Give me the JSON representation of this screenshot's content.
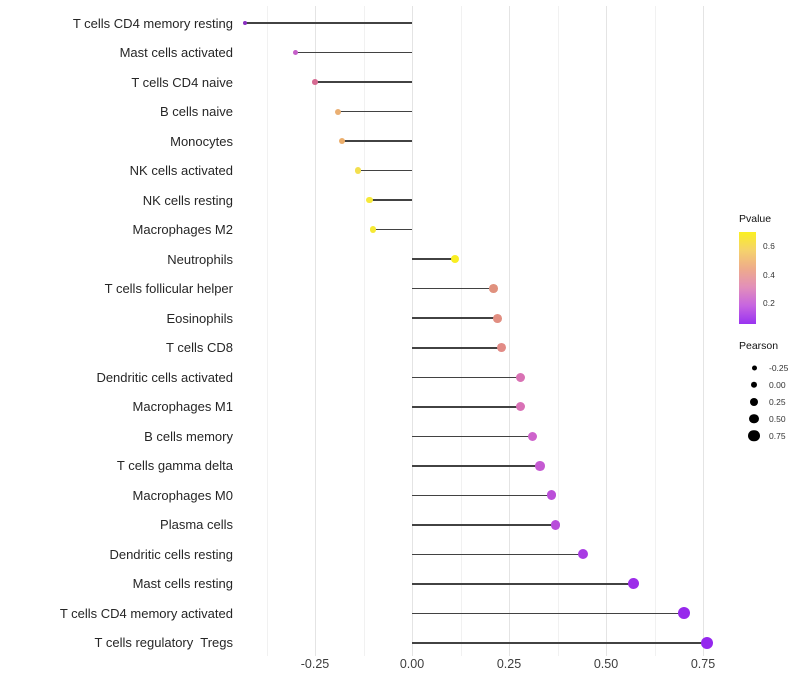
{
  "chart_data": {
    "type": "lollipop",
    "title": "",
    "xlabel": "",
    "ylabel": "",
    "xlim": [
      -0.45,
      0.8
    ],
    "baseline": 0,
    "grid_minor_step": 0.125,
    "grid_values": [
      -0.375,
      -0.25,
      -0.125,
      0,
      0.125,
      0.25,
      0.375,
      0.5,
      0.625,
      0.75
    ],
    "x_ticks": [
      {
        "value": -0.25,
        "label": "-0.25"
      },
      {
        "value": 0.0,
        "label": "0.00"
      },
      {
        "value": 0.25,
        "label": "0.25"
      },
      {
        "value": 0.5,
        "label": "0.50"
      },
      {
        "value": 0.75,
        "label": "0.75"
      }
    ],
    "categories": [
      "T cells CD4 memory resting",
      "Mast cells activated",
      "T cells CD4 naive",
      "B cells naive",
      "Monocytes",
      "NK cells activated",
      "NK cells resting",
      "Macrophages M2",
      "Neutrophils",
      "T cells follicular helper",
      "Eosinophils",
      "T cells CD8",
      "Dendritic cells activated",
      "Macrophages M1",
      "B cells memory",
      "T cells gamma delta",
      "Macrophages M0",
      "Plasma cells",
      "Dendritic cells resting",
      "Mast cells resting",
      "T cells CD4 memory activated",
      "T cells regulatory  Tregs"
    ],
    "series": [
      {
        "name": "Pearson",
        "values": [
          -0.43,
          -0.3,
          -0.25,
          -0.19,
          -0.18,
          -0.14,
          -0.11,
          -0.1,
          0.11,
          0.21,
          0.22,
          0.23,
          0.28,
          0.28,
          0.31,
          0.33,
          0.36,
          0.37,
          0.44,
          0.57,
          0.7,
          0.76
        ]
      }
    ],
    "point_colors": [
      "#8a2fc0",
      "#c55fc9",
      "#d66a92",
      "#eaaf72",
      "#ecae6b",
      "#f3df4e",
      "#f6e93a",
      "#f6e935",
      "#f9ee22",
      "#e0917e",
      "#e18e81",
      "#e28b86",
      "#d972b4",
      "#d971b6",
      "#ce63cc",
      "#c55ad2",
      "#bb4fd9",
      "#b84dda",
      "#a83be3",
      "#9c2ce9",
      "#9728ec",
      "#9527ee"
    ],
    "legends": {
      "pvalue": {
        "title": "Pvalue",
        "tick_labels": [
          "0.6",
          "0.4",
          "0.2"
        ],
        "gradient_top_to_bottom": [
          "#faf021",
          "#f5d26c",
          "#eeab8b",
          "#e28fba",
          "#c765e0",
          "#9933f0"
        ]
      },
      "pearson": {
        "title": "Pearson",
        "entries": [
          {
            "label": "-0.25",
            "size": 5
          },
          {
            "label": "0.00",
            "size": 6.5
          },
          {
            "label": "0.25",
            "size": 8
          },
          {
            "label": "0.50",
            "size": 9.5
          },
          {
            "label": "0.75",
            "size": 11.5
          }
        ]
      }
    }
  }
}
